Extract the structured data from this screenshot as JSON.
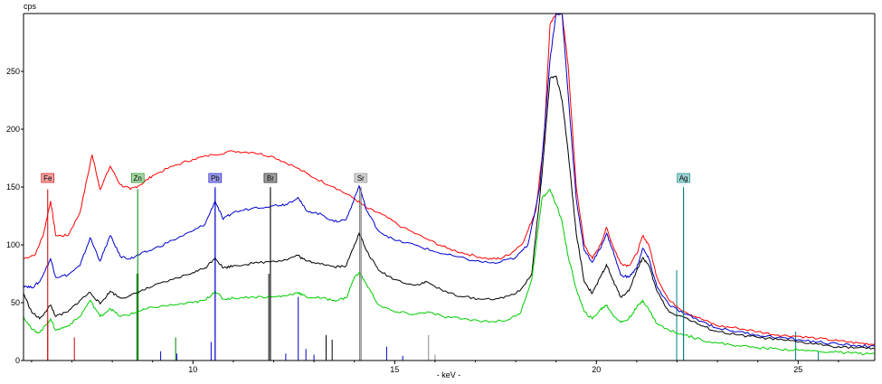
{
  "chart_data": {
    "type": "line",
    "xlabel": "- keV -",
    "ylabel": "cps",
    "xlim": [
      5.8,
      26.9
    ],
    "ylim": [
      0,
      300
    ],
    "xticks": [
      10,
      15,
      20,
      25
    ],
    "yticks": [
      0,
      50,
      100,
      150,
      200,
      250
    ],
    "grid": false,
    "series": [
      {
        "color": "#ff0000",
        "points": [
          [
            5.8,
            88
          ],
          [
            6.1,
            92
          ],
          [
            6.3,
            110
          ],
          [
            6.47,
            138
          ],
          [
            6.6,
            108
          ],
          [
            6.9,
            108
          ],
          [
            7.2,
            128
          ],
          [
            7.5,
            178
          ],
          [
            7.7,
            148
          ],
          [
            7.95,
            168
          ],
          [
            8.2,
            152
          ],
          [
            8.45,
            148
          ],
          [
            8.7,
            152
          ],
          [
            9.0,
            160
          ],
          [
            9.5,
            168
          ],
          [
            10.0,
            174
          ],
          [
            10.5,
            178
          ],
          [
            11.0,
            181
          ],
          [
            11.5,
            180
          ],
          [
            12.0,
            176
          ],
          [
            12.5,
            168
          ],
          [
            13.0,
            158
          ],
          [
            13.5,
            150
          ],
          [
            14.0,
            140
          ],
          [
            14.3,
            132
          ],
          [
            14.7,
            126
          ],
          [
            15.2,
            115
          ],
          [
            15.8,
            105
          ],
          [
            16.3,
            97
          ],
          [
            16.8,
            92
          ],
          [
            17.3,
            88
          ],
          [
            17.6,
            88
          ],
          [
            17.9,
            93
          ],
          [
            18.2,
            103
          ],
          [
            18.5,
            130
          ],
          [
            18.7,
            190
          ],
          [
            18.85,
            290
          ],
          [
            19.0,
            300
          ],
          [
            19.15,
            300
          ],
          [
            19.3,
            255
          ],
          [
            19.5,
            150
          ],
          [
            19.7,
            100
          ],
          [
            19.9,
            88
          ],
          [
            20.1,
            100
          ],
          [
            20.25,
            115
          ],
          [
            20.4,
            100
          ],
          [
            20.6,
            84
          ],
          [
            20.8,
            82
          ],
          [
            21.0,
            92
          ],
          [
            21.15,
            108
          ],
          [
            21.3,
            100
          ],
          [
            21.5,
            72
          ],
          [
            21.8,
            52
          ],
          [
            22.2,
            42
          ],
          [
            22.6,
            36
          ],
          [
            23.0,
            30
          ],
          [
            23.5,
            28
          ],
          [
            24.0,
            25
          ],
          [
            24.5,
            22
          ],
          [
            25.0,
            21
          ],
          [
            25.5,
            19
          ],
          [
            26.0,
            17
          ],
          [
            26.5,
            15
          ],
          [
            26.9,
            14
          ]
        ]
      },
      {
        "color": "#0000cc",
        "points": [
          [
            5.8,
            65
          ],
          [
            6.0,
            63
          ],
          [
            6.2,
            68
          ],
          [
            6.47,
            88
          ],
          [
            6.6,
            72
          ],
          [
            6.9,
            74
          ],
          [
            7.2,
            82
          ],
          [
            7.45,
            106
          ],
          [
            7.7,
            86
          ],
          [
            7.95,
            108
          ],
          [
            8.2,
            90
          ],
          [
            8.45,
            88
          ],
          [
            8.7,
            92
          ],
          [
            9.0,
            96
          ],
          [
            9.5,
            104
          ],
          [
            10.0,
            112
          ],
          [
            10.3,
            118
          ],
          [
            10.55,
            138
          ],
          [
            10.75,
            122
          ],
          [
            11.0,
            128
          ],
          [
            11.5,
            132
          ],
          [
            12.0,
            134
          ],
          [
            12.3,
            135
          ],
          [
            12.6,
            141
          ],
          [
            12.8,
            130
          ],
          [
            13.2,
            126
          ],
          [
            13.5,
            120
          ],
          [
            13.8,
            122
          ],
          [
            14.0,
            140
          ],
          [
            14.12,
            151
          ],
          [
            14.3,
            130
          ],
          [
            14.6,
            112
          ],
          [
            15.0,
            104
          ],
          [
            15.5,
            100
          ],
          [
            16.0,
            94
          ],
          [
            16.5,
            90
          ],
          [
            17.0,
            86
          ],
          [
            17.5,
            84
          ],
          [
            18.0,
            89
          ],
          [
            18.3,
            100
          ],
          [
            18.6,
            150
          ],
          [
            18.85,
            260
          ],
          [
            19.0,
            300
          ],
          [
            19.15,
            300
          ],
          [
            19.3,
            230
          ],
          [
            19.5,
            140
          ],
          [
            19.7,
            95
          ],
          [
            19.9,
            85
          ],
          [
            20.1,
            97
          ],
          [
            20.25,
            110
          ],
          [
            20.4,
            96
          ],
          [
            20.6,
            74
          ],
          [
            20.8,
            72
          ],
          [
            21.0,
            80
          ],
          [
            21.15,
            97
          ],
          [
            21.3,
            88
          ],
          [
            21.5,
            64
          ],
          [
            21.8,
            48
          ],
          [
            22.2,
            40
          ],
          [
            22.6,
            34
          ],
          [
            23.0,
            28
          ],
          [
            23.5,
            25
          ],
          [
            24.0,
            22
          ],
          [
            24.5,
            20
          ],
          [
            25.0,
            18
          ],
          [
            25.5,
            16
          ],
          [
            26.0,
            14
          ],
          [
            26.5,
            13
          ],
          [
            26.9,
            12
          ]
        ]
      },
      {
        "color": "#000000",
        "points": [
          [
            5.8,
            58
          ],
          [
            6.0,
            42
          ],
          [
            6.2,
            36
          ],
          [
            6.47,
            48
          ],
          [
            6.6,
            38
          ],
          [
            6.9,
            42
          ],
          [
            7.2,
            52
          ],
          [
            7.45,
            59
          ],
          [
            7.7,
            49
          ],
          [
            7.95,
            60
          ],
          [
            8.2,
            54
          ],
          [
            8.45,
            56
          ],
          [
            8.7,
            60
          ],
          [
            9.0,
            64
          ],
          [
            9.5,
            70
          ],
          [
            10.0,
            76
          ],
          [
            10.3,
            80
          ],
          [
            10.55,
            89
          ],
          [
            10.75,
            80
          ],
          [
            11.0,
            82
          ],
          [
            11.5,
            84
          ],
          [
            12.0,
            86
          ],
          [
            12.3,
            87
          ],
          [
            12.6,
            91
          ],
          [
            12.8,
            86
          ],
          [
            13.2,
            84
          ],
          [
            13.5,
            81
          ],
          [
            13.8,
            82
          ],
          [
            14.0,
            100
          ],
          [
            14.12,
            110
          ],
          [
            14.3,
            95
          ],
          [
            14.6,
            78
          ],
          [
            15.0,
            70
          ],
          [
            15.5,
            65
          ],
          [
            15.8,
            68
          ],
          [
            16.2,
            60
          ],
          [
            16.7,
            55
          ],
          [
            17.2,
            53
          ],
          [
            17.7,
            54
          ],
          [
            18.1,
            60
          ],
          [
            18.4,
            75
          ],
          [
            18.65,
            160
          ],
          [
            18.85,
            244
          ],
          [
            19.0,
            246
          ],
          [
            19.15,
            225
          ],
          [
            19.3,
            180
          ],
          [
            19.5,
            110
          ],
          [
            19.7,
            68
          ],
          [
            19.9,
            58
          ],
          [
            20.1,
            72
          ],
          [
            20.25,
            83
          ],
          [
            20.4,
            70
          ],
          [
            20.6,
            55
          ],
          [
            20.8,
            60
          ],
          [
            21.0,
            78
          ],
          [
            21.15,
            89
          ],
          [
            21.3,
            82
          ],
          [
            21.5,
            60
          ],
          [
            21.8,
            42
          ],
          [
            22.2,
            37
          ],
          [
            22.6,
            30
          ],
          [
            23.0,
            25
          ],
          [
            23.5,
            22
          ],
          [
            24.0,
            20
          ],
          [
            24.5,
            18
          ],
          [
            25.0,
            16
          ],
          [
            25.5,
            14
          ],
          [
            26.0,
            12
          ],
          [
            26.5,
            11
          ],
          [
            26.9,
            10
          ]
        ]
      },
      {
        "color": "#00cc00",
        "points": [
          [
            5.8,
            38
          ],
          [
            6.0,
            27
          ],
          [
            6.2,
            24
          ],
          [
            6.47,
            36
          ],
          [
            6.6,
            26
          ],
          [
            6.9,
            30
          ],
          [
            7.2,
            38
          ],
          [
            7.45,
            52
          ],
          [
            7.7,
            38
          ],
          [
            7.95,
            45
          ],
          [
            8.2,
            38
          ],
          [
            8.45,
            40
          ],
          [
            8.7,
            43
          ],
          [
            9.0,
            46
          ],
          [
            9.5,
            48
          ],
          [
            10.0,
            50
          ],
          [
            10.3,
            52
          ],
          [
            10.55,
            60
          ],
          [
            10.75,
            53
          ],
          [
            11.0,
            54
          ],
          [
            11.5,
            55
          ],
          [
            12.0,
            55
          ],
          [
            12.3,
            56
          ],
          [
            12.6,
            59
          ],
          [
            12.8,
            55
          ],
          [
            13.2,
            54
          ],
          [
            13.5,
            52
          ],
          [
            13.8,
            54
          ],
          [
            14.0,
            72
          ],
          [
            14.12,
            76
          ],
          [
            14.3,
            66
          ],
          [
            14.6,
            48
          ],
          [
            15.0,
            42
          ],
          [
            15.5,
            40
          ],
          [
            15.8,
            42
          ],
          [
            16.2,
            38
          ],
          [
            16.7,
            36
          ],
          [
            17.2,
            34
          ],
          [
            17.7,
            34
          ],
          [
            18.1,
            40
          ],
          [
            18.4,
            70
          ],
          [
            18.65,
            140
          ],
          [
            18.85,
            148
          ],
          [
            19.0,
            135
          ],
          [
            19.15,
            120
          ],
          [
            19.3,
            90
          ],
          [
            19.5,
            62
          ],
          [
            19.7,
            42
          ],
          [
            19.9,
            36
          ],
          [
            20.1,
            44
          ],
          [
            20.25,
            48
          ],
          [
            20.4,
            40
          ],
          [
            20.6,
            33
          ],
          [
            20.8,
            36
          ],
          [
            21.0,
            46
          ],
          [
            21.15,
            52
          ],
          [
            21.3,
            44
          ],
          [
            21.5,
            32
          ],
          [
            21.8,
            26
          ],
          [
            22.2,
            22
          ],
          [
            22.6,
            18
          ],
          [
            23.0,
            15
          ],
          [
            23.5,
            13
          ],
          [
            24.0,
            11
          ],
          [
            24.5,
            10
          ],
          [
            25.0,
            9
          ],
          [
            25.5,
            8
          ],
          [
            26.0,
            7
          ],
          [
            26.5,
            6
          ],
          [
            26.9,
            6
          ]
        ]
      }
    ],
    "markers": [
      {
        "label": "Fe",
        "energy": 6.4,
        "color": "#cc0000",
        "label_bg": "#f2a0a0"
      },
      {
        "label": "Zn",
        "energy": 8.63,
        "color": "#008000",
        "label_bg": "#a7d7a7"
      },
      {
        "label": "Pb",
        "energy": 10.55,
        "color": "#0000cc",
        "label_bg": "#9c9ce8"
      },
      {
        "label": "Br",
        "energy": 11.92,
        "color": "#000000",
        "label_bg": "#a0a0a0"
      },
      {
        "label": "Sr",
        "energy": 14.16,
        "color": "#888888",
        "label_bg": "#cfcfcf"
      },
      {
        "label": "Ag",
        "energy": 22.16,
        "color": "#008080",
        "label_bg": "#9fd3d3"
      }
    ],
    "emission_lines": [
      {
        "energy": 6.4,
        "height": 35,
        "color": "#cc0000"
      },
      {
        "energy": 7.06,
        "height": 20,
        "color": "#cc0000"
      },
      {
        "energy": 8.64,
        "height": 75,
        "color": "#008000"
      },
      {
        "energy": 8.61,
        "height": 75,
        "color": "#008000"
      },
      {
        "energy": 9.57,
        "height": 20,
        "color": "#008000"
      },
      {
        "energy": 9.2,
        "height": 8,
        "color": "#0000cc"
      },
      {
        "energy": 9.6,
        "height": 6,
        "color": "#0000cc"
      },
      {
        "energy": 10.45,
        "height": 16,
        "color": "#0000cc"
      },
      {
        "energy": 10.55,
        "height": 150,
        "color": "#0000cc"
      },
      {
        "energy": 11.92,
        "height": 150,
        "color": "#000000"
      },
      {
        "energy": 11.88,
        "height": 75,
        "color": "#000000"
      },
      {
        "energy": 12.61,
        "height": 55,
        "color": "#0000cc"
      },
      {
        "energy": 12.3,
        "height": 6,
        "color": "#0000cc"
      },
      {
        "energy": 12.8,
        "height": 10,
        "color": "#0000cc"
      },
      {
        "energy": 13.0,
        "height": 5,
        "color": "#0000cc"
      },
      {
        "energy": 13.3,
        "height": 22,
        "color": "#000000"
      },
      {
        "energy": 13.45,
        "height": 18,
        "color": "#000000"
      },
      {
        "energy": 14.13,
        "height": 150,
        "color": "#888888"
      },
      {
        "energy": 14.17,
        "height": 150,
        "color": "#888888"
      },
      {
        "energy": 14.8,
        "height": 12,
        "color": "#0000cc"
      },
      {
        "energy": 15.2,
        "height": 4,
        "color": "#0000cc"
      },
      {
        "energy": 15.84,
        "height": 22,
        "color": "#888888"
      },
      {
        "energy": 16.0,
        "height": 5,
        "color": "#888888"
      },
      {
        "energy": 21.99,
        "height": 78,
        "color": "#008080"
      },
      {
        "energy": 22.16,
        "height": 150,
        "color": "#008080"
      },
      {
        "energy": 24.94,
        "height": 25,
        "color": "#008080"
      },
      {
        "energy": 25.5,
        "height": 8,
        "color": "#008080"
      }
    ]
  }
}
